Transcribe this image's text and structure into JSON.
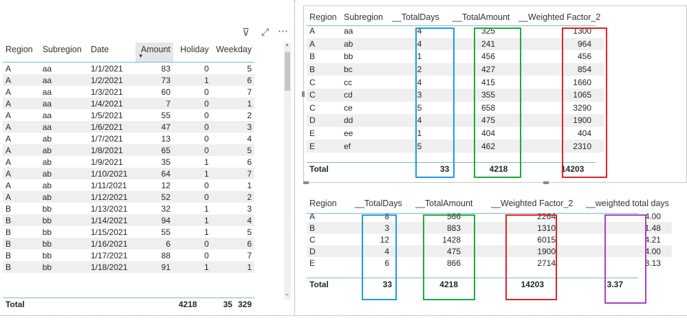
{
  "left_visual": {
    "icons": [
      "filter-icon",
      "focus-mode-icon",
      "more-options-icon"
    ],
    "icon_glyphs": {
      "filter": "⊽",
      "focus": "⤢",
      "more": "⋯"
    },
    "headers": [
      "Region",
      "Subregion",
      "Date",
      "Amount",
      "Holiday",
      "Weekday"
    ],
    "sorted_column": "Amount",
    "sort_glyph": "▼",
    "rows": [
      [
        "A",
        "aa",
        "1/1/2021",
        "83",
        "0",
        "5"
      ],
      [
        "A",
        "aa",
        "1/2/2021",
        "73",
        "1",
        "6"
      ],
      [
        "A",
        "aa",
        "1/3/2021",
        "60",
        "0",
        "7"
      ],
      [
        "A",
        "aa",
        "1/4/2021",
        "7",
        "0",
        "1"
      ],
      [
        "A",
        "aa",
        "1/5/2021",
        "55",
        "0",
        "2"
      ],
      [
        "A",
        "aa",
        "1/6/2021",
        "47",
        "0",
        "3"
      ],
      [
        "A",
        "ab",
        "1/7/2021",
        "13",
        "0",
        "4"
      ],
      [
        "A",
        "ab",
        "1/8/2021",
        "65",
        "0",
        "5"
      ],
      [
        "A",
        "ab",
        "1/9/2021",
        "35",
        "1",
        "6"
      ],
      [
        "A",
        "ab",
        "1/10/2021",
        "64",
        "1",
        "7"
      ],
      [
        "A",
        "ab",
        "1/11/2021",
        "12",
        "0",
        "1"
      ],
      [
        "A",
        "ab",
        "1/12/2021",
        "52",
        "0",
        "2"
      ],
      [
        "B",
        "bb",
        "1/13/2021",
        "32",
        "1",
        "3"
      ],
      [
        "B",
        "bb",
        "1/14/2021",
        "94",
        "1",
        "4"
      ],
      [
        "B",
        "bb",
        "1/15/2021",
        "55",
        "1",
        "5"
      ],
      [
        "B",
        "bb",
        "1/16/2021",
        "6",
        "0",
        "6"
      ],
      [
        "B",
        "bb",
        "1/17/2021",
        "88",
        "0",
        "7"
      ],
      [
        "B",
        "bb",
        "1/18/2021",
        "91",
        "1",
        "1"
      ]
    ],
    "total": {
      "label": "Total",
      "amount": "4218",
      "holiday": "35",
      "weekday": "329"
    }
  },
  "top_right_visual": {
    "headers": [
      "Region",
      "Subregion",
      "__TotalDays",
      "__TotalAmount",
      "__Weighted Factor_2"
    ],
    "rows": [
      [
        "A",
        "aa",
        "4",
        "325",
        "1300"
      ],
      [
        "A",
        "ab",
        "4",
        "241",
        "964"
      ],
      [
        "B",
        "bb",
        "1",
        "456",
        "456"
      ],
      [
        "B",
        "bc",
        "2",
        "427",
        "854"
      ],
      [
        "C",
        "cc",
        "4",
        "415",
        "1660"
      ],
      [
        "C",
        "cd",
        "3",
        "355",
        "1065"
      ],
      [
        "C",
        "ce",
        "5",
        "658",
        "3290"
      ],
      [
        "D",
        "dd",
        "4",
        "475",
        "1900"
      ],
      [
        "E",
        "ee",
        "1",
        "404",
        "404"
      ],
      [
        "E",
        "ef",
        "5",
        "462",
        "2310"
      ]
    ],
    "total": {
      "label": "Total",
      "days": "33",
      "amount": "4218",
      "factor": "14203"
    }
  },
  "bottom_right_visual": {
    "headers": [
      "Region",
      "__TotalDays",
      "__TotalAmount",
      "__Weighted Factor_2",
      "__weighted total days"
    ],
    "rows": [
      [
        "A",
        "8",
        "566",
        "2264",
        "4.00"
      ],
      [
        "B",
        "3",
        "883",
        "1310",
        "1.48"
      ],
      [
        "C",
        "12",
        "1428",
        "6015",
        "4.21"
      ],
      [
        "D",
        "4",
        "475",
        "1900",
        "4.00"
      ],
      [
        "E",
        "6",
        "866",
        "2714",
        "3.13"
      ]
    ],
    "total": {
      "label": "Total",
      "days": "33",
      "amount": "4218",
      "factor": "14203",
      "weighted": "3.37"
    }
  },
  "highlight_colors": {
    "blue": "#1a9be0",
    "green": "#1aaa3a",
    "red": "#e02020",
    "purple": "#a43fc0"
  },
  "scroll_glyphs": {
    "up": "▲",
    "down": "⌄"
  }
}
